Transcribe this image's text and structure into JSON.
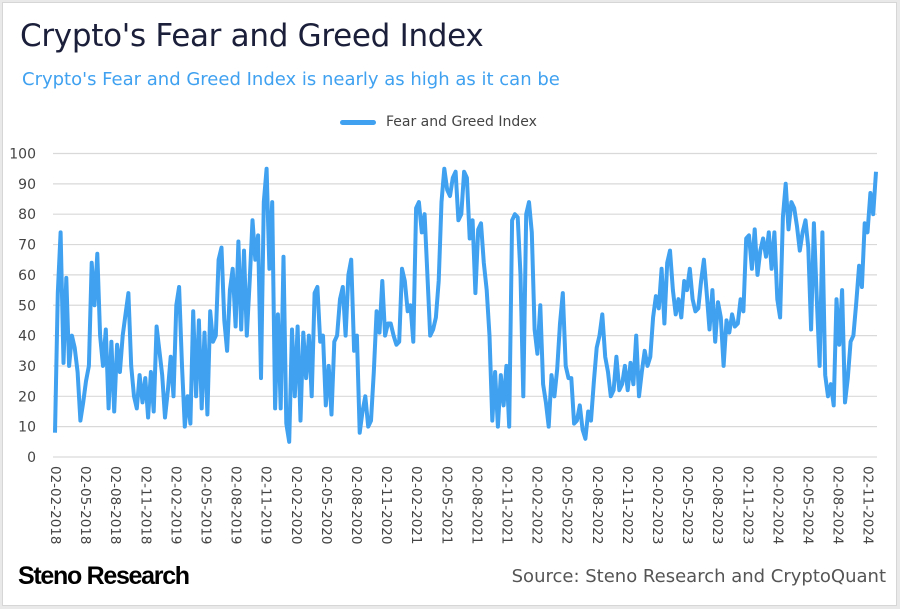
{
  "title": "Crypto's Fear and Greed Index",
  "subtitle": "Crypto's Fear and Greed Index is nearly as high as it can be",
  "footer": {
    "logo": "Steno Research",
    "source": "Source: Steno Research and CryptoQuant"
  },
  "colors": {
    "series": "#3fa1f0",
    "title": "#1b1f3a",
    "subtitle": "#3fa1f0",
    "grid": "#d9d9d9"
  },
  "chart_data": {
    "type": "line",
    "title": "Crypto's Fear and Greed Index",
    "subtitle": "Crypto's Fear and Greed Index is nearly as high as it can be",
    "xlabel": "",
    "ylabel": "",
    "ylim": [
      0,
      100
    ],
    "yticks": [
      0,
      10,
      20,
      30,
      40,
      50,
      60,
      70,
      80,
      90,
      100
    ],
    "grid": true,
    "legend": {
      "position": "top-center",
      "entries": [
        "Fear and Greed Index"
      ]
    },
    "x_tick_labels": [
      "02-02-2018",
      "02-05-2018",
      "02-08-2018",
      "02-11-2018",
      "02-02-2019",
      "02-05-2019",
      "02-08-2019",
      "02-11-2019",
      "02-02-2020",
      "02-05-2020",
      "02-08-2020",
      "02-11-2020",
      "02-02-2021",
      "02-05-2021",
      "02-08-2021",
      "02-11-2021",
      "02-02-2022",
      "02-05-2022",
      "02-08-2022",
      "02-11-2022",
      "02-02-2023",
      "02-05-2023",
      "02-08-2023",
      "02-11-2023",
      "02-02-2024",
      "02-05-2024",
      "02-08-2024",
      "02-11-2024"
    ],
    "x_start": "2018-02-02",
    "x_step": "half-month",
    "series": [
      {
        "name": "Fear and Greed Index",
        "values": [
          8,
          54,
          74,
          31,
          59,
          30,
          40,
          36,
          28,
          12,
          18,
          25,
          30,
          64,
          50,
          67,
          40,
          30,
          42,
          16,
          38,
          15,
          37,
          28,
          40,
          47,
          54,
          30,
          20,
          16,
          27,
          18,
          26,
          13,
          28,
          15,
          43,
          35,
          27,
          13,
          22,
          33,
          20,
          50,
          56,
          30,
          10,
          20,
          11,
          48,
          20,
          45,
          16,
          41,
          14,
          48,
          38,
          40,
          65,
          69,
          45,
          35,
          55,
          62,
          43,
          71,
          42,
          68,
          40,
          58,
          78,
          65,
          73,
          26,
          84,
          95,
          62,
          84,
          16,
          47,
          16,
          66,
          11,
          5,
          42,
          20,
          43,
          12,
          41,
          26,
          40,
          20,
          54,
          56,
          38,
          40,
          17,
          30,
          14,
          38,
          40,
          52,
          56,
          40,
          60,
          65,
          35,
          40,
          8,
          15,
          20,
          10,
          12,
          28,
          48,
          41,
          58,
          40,
          44,
          44,
          40,
          37,
          38,
          62,
          58,
          48,
          50,
          38,
          82,
          84,
          74,
          80,
          60,
          40,
          42,
          46,
          58,
          84,
          95,
          88,
          86,
          92,
          94,
          78,
          80,
          94,
          92,
          72,
          78,
          54,
          75,
          77,
          64,
          55,
          40,
          12,
          28,
          10,
          27,
          17,
          30,
          10,
          78,
          80,
          79,
          60,
          20,
          80,
          84,
          74,
          42,
          34,
          50,
          24,
          18,
          10,
          27,
          20,
          29,
          44,
          54,
          30,
          26,
          26,
          11,
          12,
          17,
          9,
          6,
          15,
          12,
          25,
          36,
          40,
          47,
          33,
          28,
          20,
          22,
          33,
          22,
          24,
          30,
          22,
          31,
          24,
          40,
          20,
          28,
          35,
          30,
          33,
          46,
          53,
          49,
          62,
          44,
          64,
          68,
          55,
          47,
          52,
          46,
          58,
          55,
          62,
          52,
          48,
          49,
          58,
          65,
          54,
          42,
          55,
          38,
          51,
          46,
          30,
          45,
          41,
          47,
          43,
          44,
          52,
          48,
          72,
          73,
          62,
          75,
          60,
          68,
          72,
          66,
          74,
          62,
          74,
          52,
          46,
          79,
          90,
          75,
          84,
          82,
          76,
          68,
          74,
          78,
          69,
          42,
          77,
          52,
          30,
          74,
          27,
          20,
          24,
          17,
          52,
          37,
          55,
          18,
          26,
          38,
          40,
          51,
          63,
          56,
          77,
          74,
          87,
          80,
          94
        ]
      }
    ]
  }
}
